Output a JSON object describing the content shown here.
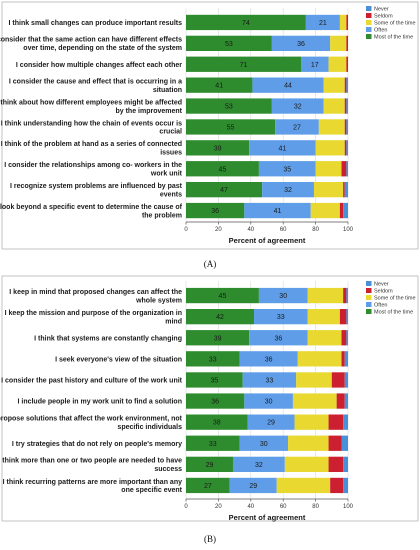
{
  "colors": {
    "Never": "#4a90d9",
    "Seldom": "#cc1f2f",
    "Some of the time": "#e8d830",
    "Often": "#5f9de8",
    "Most of the time": "#2e8b2e"
  },
  "legend_order": [
    "Never",
    "Seldom",
    "Some of the time",
    "Often",
    "Most of the time"
  ],
  "stack_order": [
    "Most of the time",
    "Often",
    "Some of the time",
    "Seldom",
    "Never"
  ],
  "chart_data": [
    {
      "type": "bar",
      "orientation": "horizontal",
      "stacked": true,
      "caption": "(A)",
      "xlabel": "Percent of agreement",
      "xlim": [
        0,
        100
      ],
      "xticks": [
        0,
        20,
        40,
        60,
        80,
        100
      ],
      "grid": true,
      "legend_position": "top-right",
      "categories": [
        [
          "I think small changes can produce important results"
        ],
        [
          "I consider that the same action can have different effects",
          "over time, depending on the state of the system"
        ],
        [
          "I consider how multiple changes affect each other"
        ],
        [
          "I consider the cause and effect that is occurring in a",
          "situation"
        ],
        [
          "I think about how different employees might be affected",
          "by the improvement"
        ],
        [
          "I think understanding how the chain of events occur is",
          "crucial"
        ],
        [
          "I think of the problem at hand as a series of connected",
          "issues"
        ],
        [
          "I consider the relationships among co- workers in the",
          "work unit"
        ],
        [
          "I recognize system problems are influenced by past",
          "events"
        ],
        [
          "I look beyond a specific event to determine the cause of",
          "the problem"
        ]
      ],
      "series": [
        {
          "name": "Most of the time",
          "values": [
            74,
            53,
            71,
            41,
            53,
            55,
            39,
            45,
            47,
            36
          ]
        },
        {
          "name": "Often",
          "values": [
            21,
            36,
            17,
            44,
            32,
            27,
            41,
            35,
            32,
            41
          ]
        },
        {
          "name": "Some of the time",
          "values": [
            4,
            10,
            11,
            13,
            13,
            16,
            18,
            16,
            18,
            18
          ]
        },
        {
          "name": "Seldom",
          "values": [
            1,
            1,
            1,
            1,
            1,
            1,
            1,
            3,
            1,
            2
          ]
        },
        {
          "name": "Never",
          "values": [
            0,
            0,
            0,
            1,
            1,
            1,
            1,
            1,
            2,
            3
          ]
        }
      ]
    },
    {
      "type": "bar",
      "orientation": "horizontal",
      "stacked": true,
      "caption": "(B)",
      "xlabel": "Percent of agreement",
      "xlim": [
        0,
        100
      ],
      "xticks": [
        0,
        20,
        40,
        60,
        80,
        100
      ],
      "grid": true,
      "legend_position": "top-right",
      "categories": [
        [
          "I keep in mind that proposed changes can affect the",
          "whole system"
        ],
        [
          "I keep the mission and purpose of the organization in",
          "mind"
        ],
        [
          "I think that systems are constantly changing"
        ],
        [
          "I seek everyone's view of the situation"
        ],
        [
          "I consider the past history and culture of the work unit"
        ],
        [
          "I include people in my work unit to find a solution"
        ],
        [
          "I propose solutions that affect the work environment, not",
          "specific individuals"
        ],
        [
          "I try strategies that do not rely on people's memory"
        ],
        [
          "I think more than one or two people are needed to have",
          "success"
        ],
        [
          "I think recurring patterns are more important than any",
          "one specific event"
        ]
      ],
      "series": [
        {
          "name": "Most of the time",
          "values": [
            45,
            42,
            39,
            33,
            35,
            36,
            38,
            33,
            29,
            27
          ]
        },
        {
          "name": "Often",
          "values": [
            30,
            33,
            36,
            36,
            33,
            30,
            29,
            30,
            32,
            29
          ]
        },
        {
          "name": "Some of the time",
          "values": [
            22,
            20,
            21,
            27,
            22,
            27,
            21,
            25,
            27,
            33
          ]
        },
        {
          "name": "Seldom",
          "values": [
            2,
            4,
            3,
            2,
            8,
            5,
            9,
            8,
            9,
            8
          ]
        },
        {
          "name": "Never",
          "values": [
            1,
            1,
            1,
            2,
            2,
            2,
            3,
            4,
            3,
            3
          ]
        }
      ]
    }
  ]
}
